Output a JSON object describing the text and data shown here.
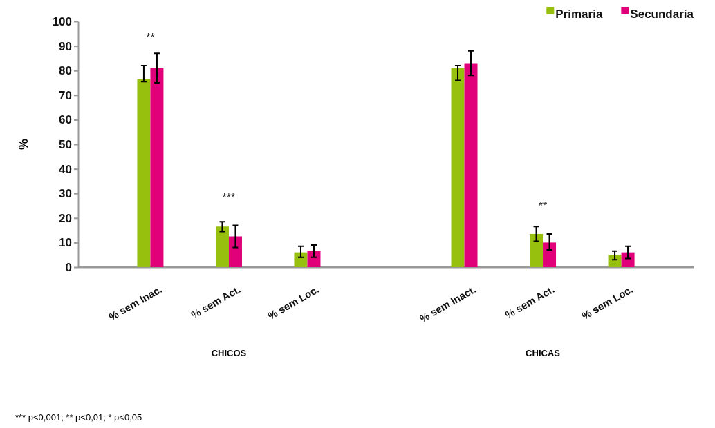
{
  "chart_data": {
    "type": "bar",
    "ylabel": "%",
    "categories": [
      "% sem Inac.",
      "% sem Act.",
      "% sem Loc.",
      null,
      "% sem Inact.",
      "% sem Act.",
      "% sem Loc."
    ],
    "series": [
      {
        "name": "Primaria",
        "color": "#97bf0d",
        "values": [
          76.5,
          16.5,
          6,
          null,
          81,
          13.5,
          5
        ],
        "errors": [
          [
            75.5,
            82
          ],
          [
            14.5,
            18.5
          ],
          [
            4,
            8.5
          ],
          null,
          [
            76,
            82
          ],
          [
            10.5,
            16.5
          ],
          [
            3,
            6.5
          ]
        ]
      },
      {
        "name": "Secundaria",
        "color": "#e2007a",
        "values": [
          81,
          12.5,
          6.5,
          null,
          83,
          10,
          6
        ],
        "errors": [
          [
            75,
            87
          ],
          [
            8,
            17
          ],
          [
            4,
            9
          ],
          null,
          [
            78,
            88
          ],
          [
            7,
            13.5
          ],
          [
            3.5,
            8.5
          ]
        ]
      }
    ],
    "ylim": [
      0,
      100
    ],
    "yticks": [
      0,
      10,
      20,
      30,
      40,
      50,
      60,
      70,
      80,
      90,
      100
    ],
    "grid": false,
    "legend": "top right",
    "annotations": [
      "**",
      "***",
      "**",
      "CHICOS",
      "CHICAS",
      "*** p<0,001; ** p<0,01; * p<0,05"
    ]
  }
}
